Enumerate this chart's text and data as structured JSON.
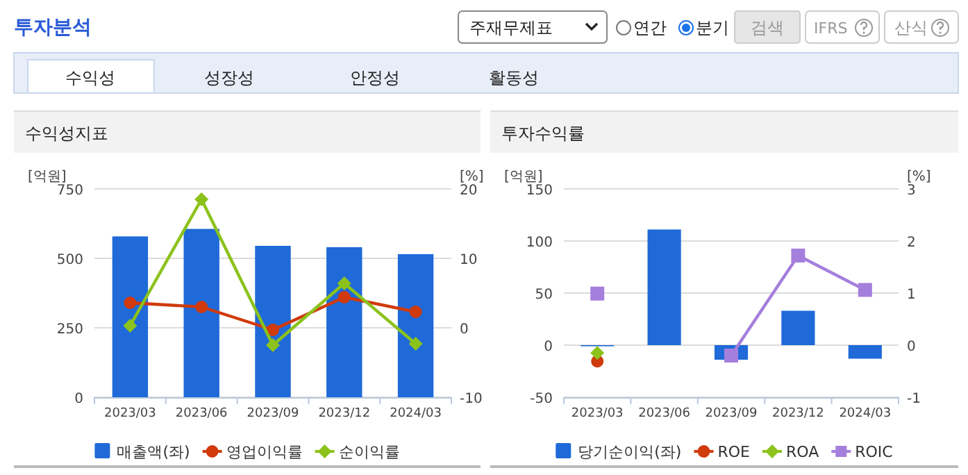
{
  "chart_data": [
    {
      "type": "other",
      "title": "투자분석",
      "annotations": [
        "주재무제표",
        "연간",
        "분기",
        "검색",
        "IFRS",
        "산식",
        "수익성",
        "성장성",
        "안정성",
        "활동성"
      ]
    },
    {
      "type": "bar",
      "title": "수익성지표",
      "ylabel": "[억원]",
      "y2label": "[%]",
      "categories": [
        "2023/03",
        "2023/06",
        "2023/09",
        "2023/12",
        "2024/03"
      ],
      "series": [
        {
          "name": "매출액(좌)",
          "color": "#1f6ad8",
          "values": [
            579,
            606,
            545,
            540,
            515
          ]
        },
        {
          "name": "영업이익률",
          "type": "line",
          "axis": "y2",
          "marker": "circle",
          "color": "#d03a0c",
          "values": [
            3.6,
            3.0,
            -0.3,
            4.4,
            2.3
          ]
        },
        {
          "name": "순이익률",
          "type": "line",
          "axis": "y2",
          "marker": "diamond",
          "color": "#8cc21c",
          "values": [
            0.3,
            18.5,
            -2.5,
            6.4,
            -2.3
          ]
        }
      ],
      "ylim": [
        0,
        750
      ],
      "yticks": [
        0,
        250,
        500,
        750
      ],
      "y2lim": [
        -10,
        20
      ],
      "y2ticks": [
        -10,
        0,
        10,
        20
      ],
      "grid": "y",
      "legend": "bottom"
    },
    {
      "type": "bar",
      "title": "투자수익률",
      "ylabel": "[억원]",
      "y2label": "[%]",
      "categories": [
        "2023/03",
        "2023/06",
        "2023/09",
        "2023/12",
        "2024/03"
      ],
      "series": [
        {
          "name": "당기순이익(좌)",
          "color": "#1f6ad8",
          "values": [
            -1,
            111,
            -14,
            33,
            -13
          ]
        },
        {
          "name": "ROE",
          "type": "line",
          "axis": "y2",
          "marker": "circle",
          "color": "#d03a0c",
          "values": [
            -0.31,
            null,
            null,
            null,
            null
          ]
        },
        {
          "name": "ROA",
          "type": "line",
          "axis": "y2",
          "marker": "diamond",
          "color": "#8cc21c",
          "values": [
            -0.15,
            null,
            null,
            null,
            null
          ]
        },
        {
          "name": "ROIC",
          "type": "line",
          "axis": "y2",
          "marker": "square",
          "color": "#a57fdc",
          "values": [
            0.99,
            null,
            -0.2,
            1.72,
            1.06
          ]
        }
      ],
      "ylim": [
        -50,
        150
      ],
      "yticks": [
        -50,
        0,
        50,
        100,
        150
      ],
      "y2lim": [
        -1,
        3
      ],
      "y2ticks": [
        -1,
        0,
        1,
        2,
        3
      ],
      "grid": "y",
      "legend": "bottom"
    }
  ]
}
